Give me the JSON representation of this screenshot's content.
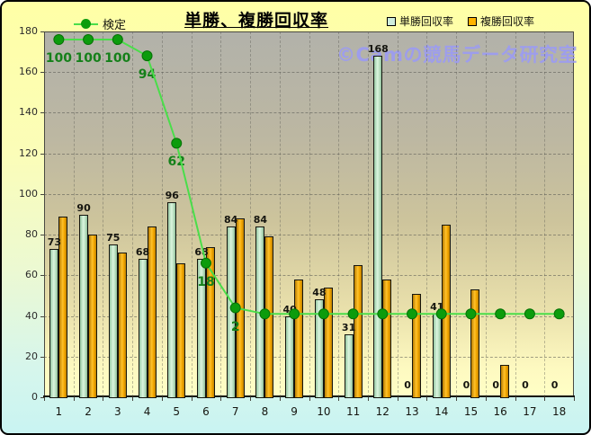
{
  "title": "単勝、複勝回収率",
  "watermark": "©Camの競馬データ研究室",
  "legend": {
    "kentei": "検定",
    "tansho": "単勝回収率",
    "fukusho": "複勝回収率"
  },
  "colors": {
    "tansho_bar": "#cfeedd",
    "fukusho_bar": "#ffb400",
    "kentei_line": "#4ade4a",
    "kentei_dot": "#0c9c0c",
    "kentei_dot_edge": "#067006",
    "kentei_label": "#15801a",
    "watermark": "#9a9af8"
  },
  "chart_data": {
    "type": "bar",
    "categories": [
      "1",
      "2",
      "3",
      "4",
      "5",
      "6",
      "7",
      "8",
      "9",
      "10",
      "11",
      "12",
      "13",
      "14",
      "15",
      "16",
      "17",
      "18"
    ],
    "series": [
      {
        "name": "単勝回収率",
        "type": "bar",
        "values": [
          73,
          90,
          75,
          68,
          96,
          68,
          84,
          84,
          40,
          48,
          31,
          168,
          0,
          41,
          0,
          0,
          0,
          0
        ],
        "data_labels": [
          "73",
          "90",
          "75",
          "68",
          "96",
          "68",
          "84",
          "84",
          "40",
          "48",
          "31",
          "168",
          "0",
          "41",
          "0",
          "0",
          "0",
          "0"
        ]
      },
      {
        "name": "複勝回収率",
        "type": "bar",
        "values": [
          89,
          80,
          71,
          84,
          66,
          74,
          88,
          79,
          58,
          54,
          65,
          58,
          51,
          85,
          53,
          16,
          0,
          0
        ],
        "data_labels": [
          "",
          "",
          "",
          "",
          "",
          "",
          "",
          "",
          "",
          "",
          "",
          "",
          "",
          "",
          "",
          "",
          "",
          ""
        ]
      },
      {
        "name": "検定",
        "type": "line",
        "axis": "secondary",
        "values": [
          100,
          100,
          100,
          94,
          62,
          18,
          2,
          0,
          0,
          0,
          0,
          0,
          0,
          0,
          0,
          0,
          0,
          0
        ],
        "point_labels": [
          "100",
          "100",
          "100",
          "94",
          "62",
          "18",
          "2",
          "",
          "",
          "",
          "",
          "",
          "",
          "",
          "",
          "",
          "",
          ""
        ],
        "primary_axis_equiv": [
          176,
          176,
          176,
          168,
          125,
          66,
          44,
          41,
          41,
          41,
          41,
          41,
          41,
          41,
          41,
          41,
          41,
          41
        ]
      }
    ],
    "xlabel": "",
    "ylabel": "",
    "ylim": [
      0,
      180
    ],
    "yticks": [
      0,
      20,
      40,
      60,
      80,
      100,
      120,
      140,
      160,
      180
    ],
    "grid": true,
    "legend_position": "top"
  }
}
